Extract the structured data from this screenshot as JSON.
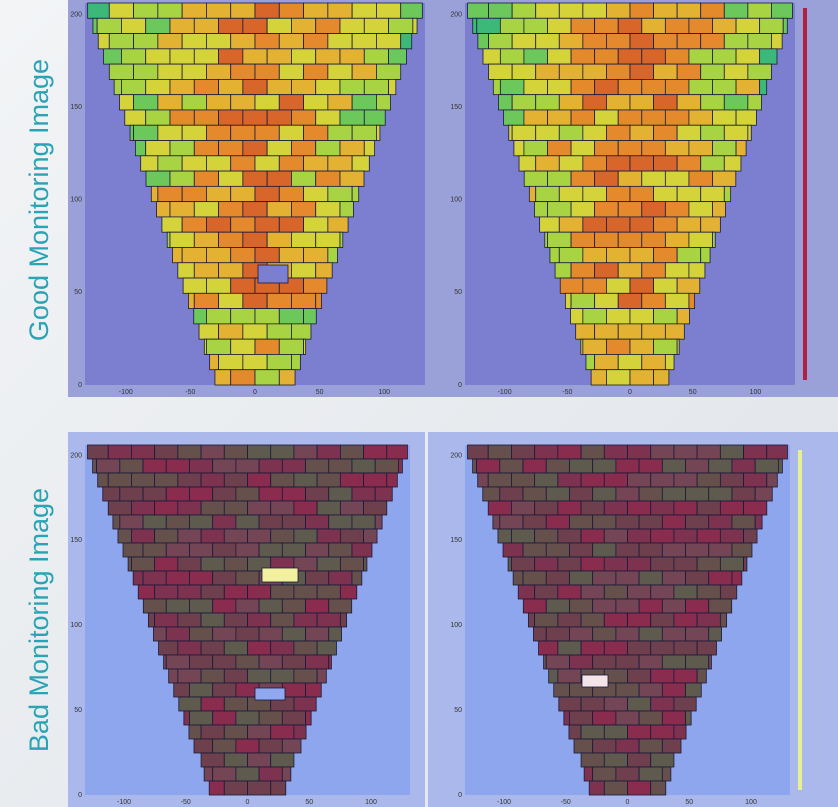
{
  "labels": {
    "good": "Good Monitoring Image",
    "bad": "Bad Monitoring Image"
  },
  "panels": [
    {
      "yticks": [
        "0",
        "50",
        "100",
        "150",
        "200"
      ],
      "xticks": [
        "-100",
        "-50",
        "0",
        "50",
        "100"
      ]
    },
    {
      "yticks": [
        "0",
        "50",
        "100",
        "150",
        "200"
      ],
      "xticks": [
        "-100",
        "-50",
        "0",
        "50",
        "100"
      ]
    },
    {
      "yticks": [
        "0",
        "50",
        "100",
        "150",
        "200"
      ],
      "xticks": [
        "-100",
        "-50",
        "0",
        "50",
        "100"
      ]
    },
    {
      "yticks": [
        "0",
        "50",
        "100",
        "150",
        "200"
      ],
      "xticks": [
        "-100",
        "-50",
        "0",
        "50",
        "100"
      ]
    }
  ]
}
